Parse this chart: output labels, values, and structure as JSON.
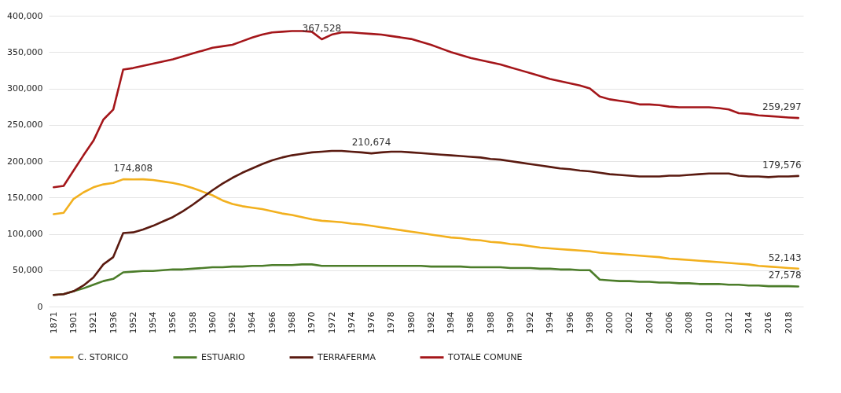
{
  "chart_data": {
    "type": "line",
    "categories": [
      "1871",
      null,
      "1901",
      null,
      "1921",
      null,
      "1936",
      null,
      "1952",
      null,
      "1954",
      null,
      "1956",
      null,
      "1958",
      null,
      "1960",
      null,
      "1962",
      null,
      "1964",
      null,
      "1966",
      null,
      "1968",
      null,
      "1970",
      null,
      "1972",
      null,
      "1974",
      null,
      "1976",
      null,
      "1978",
      null,
      "1980",
      null,
      "1982",
      null,
      "1984",
      null,
      "1986",
      null,
      "1988",
      null,
      "1990",
      null,
      "1992",
      null,
      "1994",
      null,
      "1996",
      null,
      "1998",
      null,
      "2000",
      null,
      "2002",
      null,
      "2004",
      null,
      "2006",
      null,
      "2008",
      null,
      "2010",
      null,
      "2012",
      null,
      "2014",
      null,
      "2016",
      null,
      "2018",
      null
    ],
    "series": [
      {
        "name": "C. STORICO",
        "color": "#f2b01e",
        "values": [
          127000,
          129000,
          148000,
          157000,
          164000,
          168000,
          170000,
          175000,
          174808,
          175000,
          174000,
          172000,
          170000,
          167000,
          163000,
          158000,
          153000,
          146000,
          141000,
          138000,
          136000,
          134000,
          131000,
          128000,
          126000,
          123000,
          120000,
          118000,
          117000,
          116000,
          114000,
          113000,
          111000,
          109000,
          107000,
          105000,
          103000,
          101000,
          99000,
          97000,
          95000,
          94000,
          92000,
          91000,
          89000,
          88000,
          86000,
          85000,
          83000,
          81000,
          80000,
          79000,
          78000,
          77000,
          76000,
          74000,
          73000,
          72000,
          71000,
          70000,
          69000,
          68000,
          66000,
          65000,
          64000,
          63000,
          62000,
          61000,
          60000,
          59000,
          58000,
          56000,
          55000,
          54000,
          53000,
          52143
        ],
        "value_labels": [
          null,
          null,
          null,
          null,
          null,
          null,
          null,
          null,
          "174,808",
          null,
          null,
          null,
          null,
          null,
          null,
          null,
          null,
          null,
          null,
          null,
          null,
          null,
          null,
          null,
          null,
          null,
          null,
          null,
          null,
          null,
          null,
          null,
          null,
          null,
          null,
          null,
          null,
          null,
          null,
          null,
          null,
          null,
          null,
          null,
          null,
          null,
          null,
          null,
          null,
          null,
          null,
          null,
          null,
          null,
          null,
          null,
          null,
          null,
          null,
          null,
          null,
          null,
          null,
          null,
          null,
          null,
          null,
          null,
          null,
          null,
          null,
          null,
          null,
          null,
          null,
          "52,143"
        ]
      },
      {
        "name": "ESTUARIO",
        "color": "#4c7d2a",
        "values": [
          16000,
          17000,
          21000,
          25000,
          30000,
          35000,
          38000,
          47000,
          48000,
          49000,
          49000,
          50000,
          51000,
          51000,
          52000,
          53000,
          54000,
          54000,
          55000,
          55000,
          56000,
          56000,
          57000,
          57000,
          57000,
          58000,
          58000,
          56000,
          56000,
          56000,
          56000,
          56000,
          56000,
          56000,
          56000,
          56000,
          56000,
          56000,
          55000,
          55000,
          55000,
          55000,
          54000,
          54000,
          54000,
          54000,
          53000,
          53000,
          53000,
          52000,
          52000,
          51000,
          51000,
          50000,
          50000,
          37000,
          36000,
          35000,
          35000,
          34000,
          34000,
          33000,
          33000,
          32000,
          32000,
          31000,
          31000,
          31000,
          30000,
          30000,
          29000,
          29000,
          28000,
          28000,
          28000,
          27578
        ],
        "value_labels": [
          null,
          null,
          null,
          null,
          null,
          null,
          null,
          null,
          null,
          null,
          null,
          null,
          null,
          null,
          null,
          null,
          null,
          null,
          null,
          null,
          null,
          null,
          null,
          null,
          null,
          null,
          null,
          null,
          null,
          null,
          null,
          null,
          null,
          null,
          null,
          null,
          null,
          null,
          null,
          null,
          null,
          null,
          null,
          null,
          null,
          null,
          null,
          null,
          null,
          null,
          null,
          null,
          null,
          null,
          null,
          null,
          null,
          null,
          null,
          null,
          null,
          null,
          null,
          null,
          null,
          null,
          null,
          null,
          null,
          null,
          null,
          null,
          null,
          null,
          null,
          "27,578"
        ]
      },
      {
        "name": "TERRAFERMA",
        "color": "#5a1a10",
        "values": [
          16000,
          17000,
          21000,
          29000,
          40000,
          58000,
          68000,
          101000,
          102000,
          106000,
          111000,
          117000,
          123000,
          131000,
          140000,
          150000,
          160000,
          169000,
          177000,
          184000,
          190000,
          196000,
          201000,
          205000,
          208000,
          210000,
          212000,
          213000,
          214000,
          214000,
          213000,
          212000,
          210674,
          212000,
          213000,
          213000,
          212000,
          211000,
          210000,
          209000,
          208000,
          207000,
          206000,
          205000,
          203000,
          202000,
          200000,
          198000,
          196000,
          194000,
          192000,
          190000,
          189000,
          187000,
          186000,
          184000,
          182000,
          181000,
          180000,
          179000,
          179000,
          179000,
          180000,
          180000,
          181000,
          182000,
          183000,
          183000,
          183000,
          180000,
          179000,
          179000,
          178000,
          179000,
          179000,
          179576
        ],
        "value_labels": [
          null,
          null,
          null,
          null,
          null,
          null,
          null,
          null,
          null,
          null,
          null,
          null,
          null,
          null,
          null,
          null,
          null,
          null,
          null,
          null,
          null,
          null,
          null,
          null,
          null,
          null,
          null,
          null,
          null,
          null,
          null,
          null,
          "210,674",
          null,
          null,
          null,
          null,
          null,
          null,
          null,
          null,
          null,
          null,
          null,
          null,
          null,
          null,
          null,
          null,
          null,
          null,
          null,
          null,
          null,
          null,
          null,
          null,
          null,
          null,
          null,
          null,
          null,
          null,
          null,
          null,
          null,
          null,
          null,
          null,
          null,
          null,
          null,
          null,
          null,
          null,
          "179,576"
        ]
      },
      {
        "name": "TOTALE COMUNE",
        "color": "#a4161a",
        "values": [
          164000,
          166000,
          187000,
          208000,
          228000,
          257000,
          271000,
          326000,
          328000,
          331000,
          334000,
          337000,
          340000,
          344000,
          348000,
          352000,
          356000,
          358000,
          360000,
          365000,
          370000,
          374000,
          377000,
          378000,
          379000,
          379000,
          378000,
          367528,
          374000,
          377000,
          377000,
          376000,
          375000,
          374000,
          372000,
          370000,
          368000,
          364000,
          360000,
          355000,
          350000,
          346000,
          342000,
          339000,
          336000,
          333000,
          329000,
          325000,
          321000,
          317000,
          313000,
          310000,
          307000,
          304000,
          300000,
          289000,
          285000,
          283000,
          281000,
          278000,
          278000,
          277000,
          275000,
          274000,
          274000,
          274000,
          274000,
          273000,
          271000,
          266000,
          265000,
          263000,
          262000,
          261000,
          260000,
          259297
        ],
        "value_labels": [
          null,
          null,
          null,
          null,
          null,
          null,
          null,
          null,
          null,
          null,
          null,
          null,
          null,
          null,
          null,
          null,
          null,
          null,
          null,
          null,
          null,
          null,
          null,
          null,
          null,
          null,
          null,
          "367,528",
          null,
          null,
          null,
          null,
          null,
          null,
          null,
          null,
          null,
          null,
          null,
          null,
          null,
          null,
          null,
          null,
          null,
          null,
          null,
          null,
          null,
          null,
          null,
          null,
          null,
          null,
          null,
          null,
          null,
          null,
          null,
          null,
          null,
          null,
          null,
          null,
          null,
          null,
          null,
          null,
          null,
          null,
          null,
          null,
          null,
          null,
          null,
          "259,297"
        ]
      }
    ],
    "ylim": [
      0,
      400000
    ],
    "yticks": [
      0,
      {
        "value": 50000,
        "label": "50,000"
      },
      {
        "value": 100000,
        "label": "100,000"
      },
      {
        "value": 150000,
        "label": "150,000"
      },
      {
        "value": 200000,
        "label": "200,000"
      },
      {
        "value": 250000,
        "label": "250,000"
      },
      {
        "value": 300000,
        "label": "300,000"
      },
      {
        "value": 350000,
        "label": "350,000"
      },
      {
        "value": 400000,
        "label": "400,000"
      }
    ],
    "grid": "y",
    "legend": "bottom"
  }
}
